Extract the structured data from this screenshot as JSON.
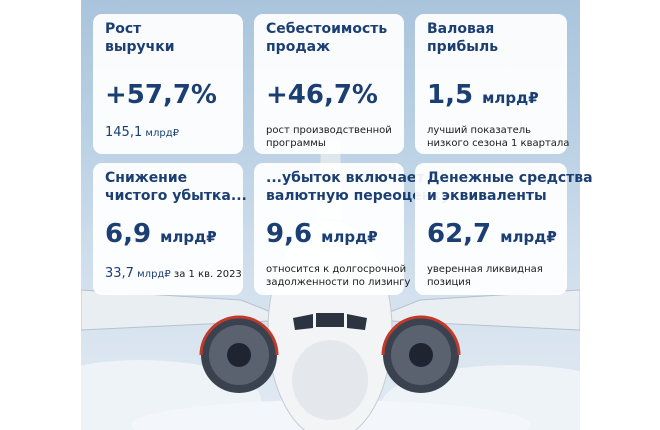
{
  "cards": [
    {
      "title_lines": [
        "Рост",
        "выручки"
      ],
      "value": "+57,7%",
      "value_unit": "",
      "note_big": "145,1",
      "note_unit": "млрд₽",
      "note_rest": "",
      "note_lines": []
    },
    {
      "title_lines": [
        "Себестоимость",
        "продаж"
      ],
      "value": "+46,7%",
      "value_unit": "",
      "note_lines": [
        "рост производственной",
        "программы"
      ]
    },
    {
      "title_lines": [
        "Валовая",
        "прибыль"
      ],
      "value": "1,5",
      "value_unit": "млрд₽",
      "note_lines": [
        "лучший показатель",
        "низкого сезона 1 квартала"
      ]
    },
    {
      "title_lines": [
        "Снижение",
        "чистого убытка..."
      ],
      "value": "6,9",
      "value_unit": "млрд₽",
      "note_big": "33,7",
      "note_unit": "млрд₽",
      "note_rest": "за 1 кв. 2023",
      "note_lines": []
    },
    {
      "title_lines": [
        "...убыток включает",
        "валютную переоценку"
      ],
      "value": "9,6",
      "value_unit": "млрд₽",
      "note_lines": [
        "относится к долгосрочной",
        "задолженности по лизингу"
      ]
    },
    {
      "title_lines": [
        "Денежные средства",
        "и эквиваленты"
      ],
      "value": "62,7",
      "value_unit": "млрд₽",
      "note_lines": [
        "уверенная ликвидная",
        "позиция"
      ]
    }
  ],
  "colors": {
    "accent": "#1c3f73",
    "card_bg": "#ffffff",
    "sky": "#bcd2e5"
  },
  "background_image": "airplane-front-view-in-clouds"
}
